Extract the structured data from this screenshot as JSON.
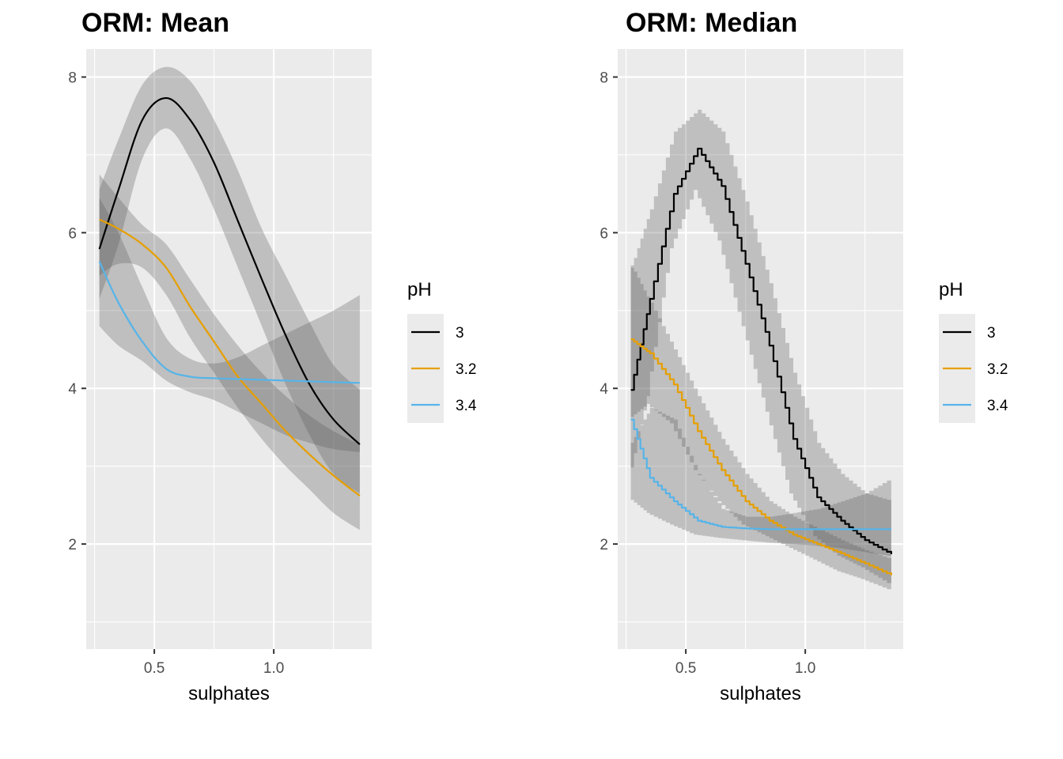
{
  "chart_data": [
    {
      "type": "line",
      "title": "ORM: Mean",
      "xlabel": "sulphates",
      "ylabel": "",
      "xlim": [
        0.215,
        1.41
      ],
      "ylim": [
        0.65,
        8.36
      ],
      "x_ticks": [
        0.5,
        1.0
      ],
      "x_tick_labels": [
        "0.5",
        "1.0"
      ],
      "x_minor": [
        0.25,
        0.75,
        1.25
      ],
      "y_ticks": [
        2,
        4,
        6,
        8
      ],
      "y_tick_labels": [
        "2",
        "4",
        "6",
        "8"
      ],
      "y_minor": [
        1,
        3,
        5,
        7
      ],
      "grid": true,
      "legend": {
        "title": "pH",
        "position": "right",
        "entries": [
          "3",
          "3.2",
          "3.4"
        ]
      },
      "x": [
        0.27,
        0.35,
        0.45,
        0.55,
        0.65,
        0.75,
        0.85,
        0.95,
        1.05,
        1.15,
        1.25,
        1.36
      ],
      "series": [
        {
          "name": "3",
          "color": "#000000",
          "values": [
            5.79,
            6.55,
            7.45,
            7.73,
            7.45,
            6.9,
            6.15,
            5.4,
            4.68,
            4.05,
            3.6,
            3.28
          ],
          "upper": [
            6.55,
            7.2,
            7.9,
            8.13,
            7.95,
            7.45,
            6.8,
            6.05,
            5.45,
            4.85,
            4.3,
            3.98
          ],
          "lower": [
            5.15,
            5.85,
            6.95,
            7.34,
            6.95,
            6.3,
            5.55,
            4.8,
            4.05,
            3.4,
            2.9,
            2.65
          ]
        },
        {
          "name": "3.2",
          "color": "#E69F00",
          "values": [
            6.17,
            6.05,
            5.85,
            5.55,
            5.05,
            4.6,
            4.15,
            3.8,
            3.45,
            3.15,
            2.88,
            2.62
          ],
          "upper": [
            6.75,
            6.45,
            6.1,
            5.85,
            5.4,
            4.95,
            4.55,
            4.2,
            3.9,
            3.65,
            3.45,
            3.28
          ],
          "lower": [
            5.45,
            5.6,
            5.55,
            5.2,
            4.65,
            4.2,
            3.75,
            3.35,
            3.0,
            2.7,
            2.4,
            2.18
          ]
        },
        {
          "name": "3.4",
          "color": "#56B4E9",
          "values": [
            5.63,
            5.1,
            4.6,
            4.25,
            4.15,
            4.13,
            4.12,
            4.11,
            4.1,
            4.09,
            4.08,
            4.07
          ],
          "upper": [
            6.45,
            6.0,
            5.3,
            4.65,
            4.38,
            4.32,
            4.4,
            4.55,
            4.7,
            4.85,
            5.0,
            5.2
          ],
          "lower": [
            4.8,
            4.55,
            4.35,
            4.1,
            3.95,
            3.85,
            3.7,
            3.55,
            3.4,
            3.3,
            3.22,
            3.18
          ]
        }
      ]
    },
    {
      "type": "line",
      "title": "ORM: Median",
      "xlabel": "sulphates",
      "ylabel": "",
      "xlim": [
        0.215,
        1.41
      ],
      "ylim": [
        0.65,
        8.36
      ],
      "x_ticks": [
        0.5,
        1.0
      ],
      "x_tick_labels": [
        "0.5",
        "1.0"
      ],
      "x_minor": [
        0.25,
        0.75,
        1.25
      ],
      "y_ticks": [
        2,
        4,
        6,
        8
      ],
      "y_tick_labels": [
        "2",
        "4",
        "6",
        "8"
      ],
      "y_minor": [
        1,
        3,
        5,
        7
      ],
      "grid": true,
      "legend": {
        "title": "pH",
        "position": "right",
        "entries": [
          "3",
          "3.2",
          "3.4"
        ]
      },
      "x": [
        0.27,
        0.35,
        0.45,
        0.55,
        0.65,
        0.75,
        0.85,
        0.95,
        1.05,
        1.15,
        1.25,
        1.36
      ],
      "series": [
        {
          "name": "3",
          "color": "#000000",
          "step": true,
          "values": [
            3.98,
            5.15,
            6.5,
            7.08,
            6.6,
            5.6,
            4.55,
            3.35,
            2.6,
            2.3,
            2.05,
            1.87
          ],
          "upper": [
            5.55,
            6.3,
            7.3,
            7.58,
            7.3,
            6.4,
            5.35,
            4.2,
            3.3,
            2.9,
            2.65,
            2.55
          ],
          "lower": [
            2.8,
            3.9,
            5.8,
            6.55,
            5.9,
            4.8,
            3.7,
            2.65,
            2.1,
            1.85,
            1.7,
            1.5
          ]
        },
        {
          "name": "3.2",
          "color": "#E69F00",
          "step": true,
          "values": [
            4.63,
            4.45,
            4.05,
            3.45,
            2.95,
            2.55,
            2.3,
            2.12,
            2.0,
            1.88,
            1.75,
            1.6
          ],
          "upper": [
            5.58,
            5.1,
            4.5,
            3.9,
            3.35,
            2.9,
            2.55,
            2.35,
            2.2,
            2.05,
            1.92,
            1.8
          ],
          "lower": [
            3.6,
            3.8,
            3.55,
            2.95,
            2.55,
            2.25,
            2.1,
            1.95,
            1.8,
            1.65,
            1.55,
            1.42
          ]
        },
        {
          "name": "3.4",
          "color": "#56B4E9",
          "step": true,
          "values": [
            3.6,
            2.85,
            2.55,
            2.3,
            2.22,
            2.2,
            2.19,
            2.19,
            2.19,
            2.19,
            2.19,
            2.19
          ],
          "upper": [
            3.3,
            3.75,
            3.6,
            2.9,
            2.45,
            2.35,
            2.35,
            2.4,
            2.45,
            2.55,
            2.65,
            2.85
          ],
          "lower": [
            2.6,
            2.4,
            2.25,
            2.12,
            2.08,
            2.05,
            2.02,
            2.0,
            1.98,
            1.95,
            1.9,
            1.85
          ]
        }
      ]
    }
  ]
}
